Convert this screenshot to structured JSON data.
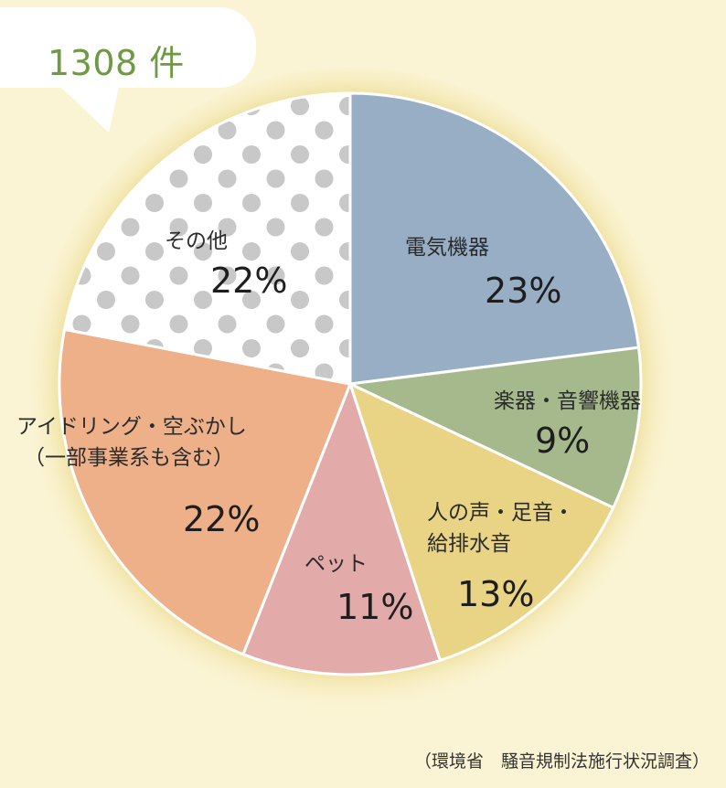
{
  "badge": {
    "count": "1308 件"
  },
  "source": "（環境省　騒音規制法施行状況調査）",
  "colors": {
    "background": "#FBF4D4",
    "electric": "#97AEC4",
    "instruments": "#A6B98D",
    "voices": "#E9D486",
    "pets": "#E3AAAA",
    "idling": "#EEB088",
    "other": "#FFFFFF",
    "dots": "#C8C8C8",
    "count_text": "#6E9A43"
  },
  "chart_data": {
    "type": "pie",
    "title": "1308 件",
    "total": 1308,
    "start_angle": "12 o'clock, clockwise",
    "slices": [
      {
        "label": "電気機器",
        "value": 23,
        "display": "23%"
      },
      {
        "label": "楽器・音響機器",
        "value": 9,
        "display": "9%"
      },
      {
        "label": "人の声・足音・給排水音",
        "value": 13,
        "display": "13%"
      },
      {
        "label": "ペット",
        "value": 11,
        "display": "11%"
      },
      {
        "label": "アイドリング・空ぶかし（一部事業系も含む）",
        "value": 22,
        "display": "22%"
      },
      {
        "label": "その他",
        "value": 22,
        "display": "22%"
      }
    ],
    "source": "（環境省　騒音規制法施行状況調査）"
  },
  "labels": {
    "electric": {
      "name": "電気機器",
      "pct": "23%"
    },
    "instruments": {
      "name": "楽器・音響機器",
      "pct": "9%"
    },
    "voices": {
      "line1": "人の声・足音・",
      "line2": "給排水音",
      "pct": "13%"
    },
    "pets": {
      "name": "ペット",
      "pct": "11%"
    },
    "idling": {
      "line1": "アイドリング・空ぶかし",
      "line2": "（一部事業系も含む）",
      "pct": "22%"
    },
    "other": {
      "name": "その他",
      "pct": "22%"
    }
  }
}
